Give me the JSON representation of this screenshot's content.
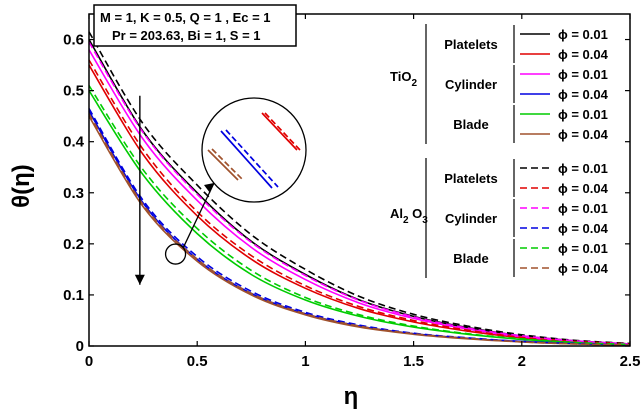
{
  "chart_data": {
    "type": "line",
    "title": "",
    "xlabel": "η",
    "ylabel": "θ(η)",
    "xlim": [
      0,
      2.5
    ],
    "ylim": [
      0,
      0.65
    ],
    "xticks": [
      0,
      0.5,
      1,
      1.5,
      2,
      2.5
    ],
    "xtick_labels": [
      "0",
      "0.5",
      "1",
      "1.5",
      "2",
      "2.5"
    ],
    "yticks": [
      0,
      0.1,
      0.2,
      0.3,
      0.4,
      0.5,
      0.6
    ],
    "ytick_labels": [
      "0",
      "0.1",
      "0.2",
      "0.3",
      "0.4",
      "0.5",
      "0.6"
    ],
    "x": [
      0,
      0.25,
      0.5,
      0.75,
      1.0,
      1.25,
      1.5,
      1.75,
      2.0,
      2.25,
      2.5
    ],
    "parameters_line1": "M = 1, K = 0.5, Q = 1 , Ec = 1",
    "parameters_line2": "Pr = 203.63, Bi = 1, S = 1",
    "groups": [
      {
        "main": "TiO",
        "sub": "2"
      },
      {
        "main": "Al",
        "sub": "2",
        "after": " O",
        "sub2": "3"
      }
    ],
    "shape_labels": [
      "Platelets",
      "Cylinder",
      "Blade",
      "Platelets",
      "Cylinder",
      "Blade"
    ],
    "series": [
      {
        "name": "TiO2 Platelets φ = 0.01",
        "legend": "ϕ = 0.01",
        "color": "#000000",
        "dash": "solid",
        "values": [
          0.6,
          0.42,
          0.3,
          0.205,
          0.14,
          0.09,
          0.058,
          0.036,
          0.02,
          0.01,
          0.004
        ]
      },
      {
        "name": "TiO2 Platelets φ = 0.04",
        "legend": "ϕ = 0.04",
        "color": "#e00000",
        "dash": "solid",
        "values": [
          0.55,
          0.375,
          0.255,
          0.17,
          0.113,
          0.073,
          0.047,
          0.029,
          0.016,
          0.008,
          0.003
        ]
      },
      {
        "name": "TiO2 Cylinder φ = 0.01",
        "legend": "ϕ = 0.01",
        "color": "#ff00ff",
        "dash": "solid",
        "values": [
          0.58,
          0.405,
          0.285,
          0.193,
          0.13,
          0.084,
          0.054,
          0.033,
          0.018,
          0.009,
          0.004
        ]
      },
      {
        "name": "TiO2 Cylinder φ = 0.04",
        "legend": "ϕ = 0.04",
        "color": "#0000e0",
        "dash": "solid",
        "values": [
          0.46,
          0.28,
          0.17,
          0.103,
          0.063,
          0.039,
          0.024,
          0.015,
          0.009,
          0.005,
          0.002
        ]
      },
      {
        "name": "TiO2 Blade φ = 0.01",
        "legend": "ϕ = 0.01",
        "color": "#00cc00",
        "dash": "solid",
        "values": [
          0.5,
          0.335,
          0.22,
          0.14,
          0.09,
          0.058,
          0.037,
          0.023,
          0.013,
          0.007,
          0.003
        ]
      },
      {
        "name": "TiO2 Blade φ = 0.04",
        "legend": "ϕ = 0.04",
        "color": "#a0522d",
        "dash": "solid",
        "values": [
          0.45,
          0.273,
          0.166,
          0.1,
          0.061,
          0.037,
          0.023,
          0.014,
          0.008,
          0.004,
          0.002
        ]
      },
      {
        "name": "Al2O3 Platelets φ = 0.01",
        "legend": "ϕ = 0.01",
        "color": "#000000",
        "dash": "dashed",
        "values": [
          0.615,
          0.435,
          0.315,
          0.218,
          0.15,
          0.097,
          0.062,
          0.039,
          0.022,
          0.011,
          0.005
        ]
      },
      {
        "name": "Al2O3 Platelets φ = 0.04",
        "legend": "ϕ = 0.04",
        "color": "#e00000",
        "dash": "dashed",
        "values": [
          0.56,
          0.385,
          0.263,
          0.177,
          0.118,
          0.077,
          0.05,
          0.031,
          0.017,
          0.009,
          0.004
        ]
      },
      {
        "name": "Al2O3 Cylinder φ = 0.01",
        "legend": "ϕ = 0.01",
        "color": "#ff00ff",
        "dash": "dashed",
        "values": [
          0.595,
          0.418,
          0.297,
          0.203,
          0.138,
          0.089,
          0.057,
          0.035,
          0.02,
          0.01,
          0.004
        ]
      },
      {
        "name": "Al2O3 Cylinder φ = 0.04",
        "legend": "ϕ = 0.04",
        "color": "#0000e0",
        "dash": "dashed",
        "values": [
          0.465,
          0.285,
          0.175,
          0.107,
          0.066,
          0.041,
          0.025,
          0.016,
          0.009,
          0.005,
          0.002
        ]
      },
      {
        "name": "Al2O3 Blade φ = 0.01",
        "legend": "ϕ = 0.01",
        "color": "#00cc00",
        "dash": "dashed",
        "values": [
          0.51,
          0.345,
          0.23,
          0.148,
          0.095,
          0.061,
          0.039,
          0.024,
          0.014,
          0.007,
          0.003
        ]
      },
      {
        "name": "Al2O3 Blade φ = 0.04",
        "legend": "ϕ = 0.04",
        "color": "#a0522d",
        "dash": "dashed",
        "values": [
          0.455,
          0.277,
          0.17,
          0.103,
          0.063,
          0.039,
          0.024,
          0.015,
          0.008,
          0.004,
          0.002
        ]
      }
    ],
    "annotations": {
      "arrow": "downward arrow indicating decrease with increasing ϕ",
      "zoom": "circle magnifier at η ≈ 0.4, θ ≈ 0.18 with enlarged inset"
    }
  }
}
